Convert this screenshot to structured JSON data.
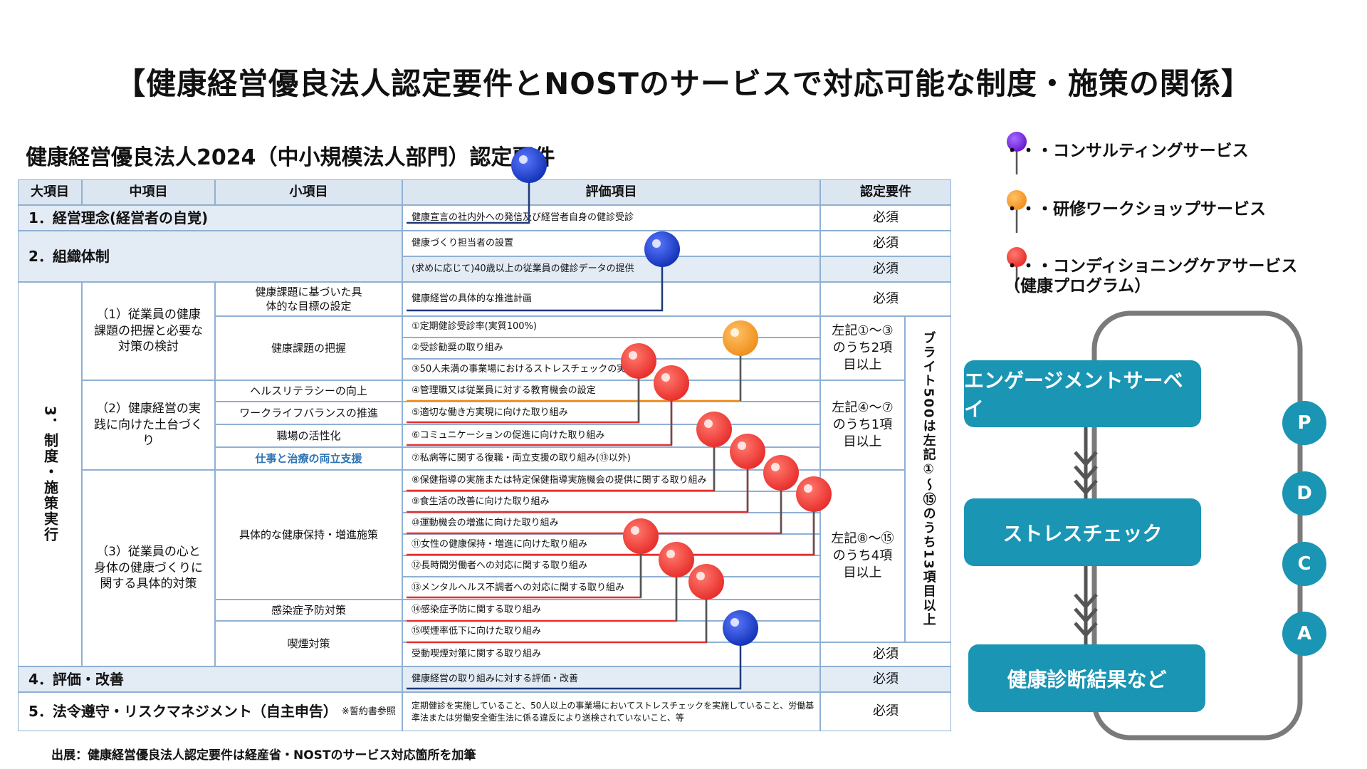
{
  "main_title": "【健康経営優良法人認定要件とNOSTのサービスで対応可能な制度・施策の関係】",
  "table_title": "健康経営優良法人2024（中小規模法人部門）認定要件",
  "headers": {
    "large": "大項目",
    "middle": "中項目",
    "small": "小項目",
    "eval": "評価項目",
    "req": "認定要件"
  },
  "sections": {
    "s1": "1．経営理念(経営者の自覚)",
    "s2": "2．組織体制",
    "s3": "3．制度・施策実行",
    "s4": "4．評価・改善",
    "s5": "5．法令遵守・リスクマネジメント（自主申告）",
    "s5_note": "※誓約書参照"
  },
  "middle": {
    "m1": "（1）従業員の健康課題の把握と必要な対策の検討",
    "m2": "（2）健康経営の実践に向けた土台づくり",
    "m3": "（3）従業員の心と身体の健康づくりに関する具体的対策"
  },
  "small": {
    "t1": "健康課題に基づいた具体的な目標の設定",
    "t2": "健康課題の把握",
    "t3": "ヘルスリテラシーの向上",
    "t4": "ワークライフバランスの推進",
    "t5": "職場の活性化",
    "t6": "仕事と治療の両立支援",
    "t7": "具体的な健康保持・増進施策",
    "t8": "感染症予防対策",
    "t9": "喫煙対策"
  },
  "eval": [
    "健康宣言の社内外への発信及び経営者自身の健診受診",
    "健康づくり担当者の設置",
    "(求めに応じて)40歳以上の従業員の健診データの提供",
    "健康経営の具体的な推進計画",
    "①定期健診受診率(実質100%)",
    "②受診勧奨の取り組み",
    "③50人未満の事業場におけるストレスチェックの実施",
    "④管理職又は従業員に対する教育機会の設定",
    "⑤適切な働き方実現に向けた取り組み",
    "⑥コミュニケーションの促進に向けた取り組み",
    "⑦私病等に関する復職・両立支援の取り組み(⑬以外)",
    "⑧保健指導の実施または特定保健指導実施機会の提供に関する取り組み",
    "⑨食生活の改善に向けた取り組み",
    "⑩運動機会の増進に向けた取り組み",
    "⑪女性の健康保持・増進に向けた取り組み",
    "⑫長時間労働者への対応に関する取り組み",
    "⑬メンタルヘルス不調者への対応に関する取り組み",
    "⑭感染症予防に関する取り組み",
    "⑮喫煙率低下に向けた取り組み",
    "受動喫煙対策に関する取り組み",
    "健康経営の取り組みに対する評価・改善",
    "定期健診を実施していること、50人以上の事業場においてストレスチェックを実施していること、労働基準法または労働安全衛生法に係る違反により送検されていないこと、等"
  ],
  "req": {
    "must": "必須",
    "g1": "左記①～③のうち2項目以上",
    "g2": "左記④～⑦のうち1項目以上",
    "g3": "左記⑧～⑮のうち4項目以上",
    "bright": "ブライト500は左記①～⑮のうち13項目以上"
  },
  "source": "出展：健康経営優良法人認定要件は経産省・NOSTのサービス対応箇所を加筆",
  "legend": [
    {
      "label": "・・・コンサルティングサービス",
      "color": "#6a1bd1"
    },
    {
      "label": "・・・研修ワークショップサービス",
      "color": "#f0901e"
    },
    {
      "label": "・・・コンディショニングケアサービス（健康プログラム）",
      "color": "#e8302d"
    }
  ],
  "pin_colors": {
    "blue": "#1535b8",
    "orange": "#f0901e",
    "red": "#e8302d"
  },
  "flow": [
    "エンゲージメントサーベイ",
    "ストレスチェック",
    "健康診断結果など"
  ],
  "pdca": [
    "P",
    "D",
    "C",
    "A"
  ]
}
